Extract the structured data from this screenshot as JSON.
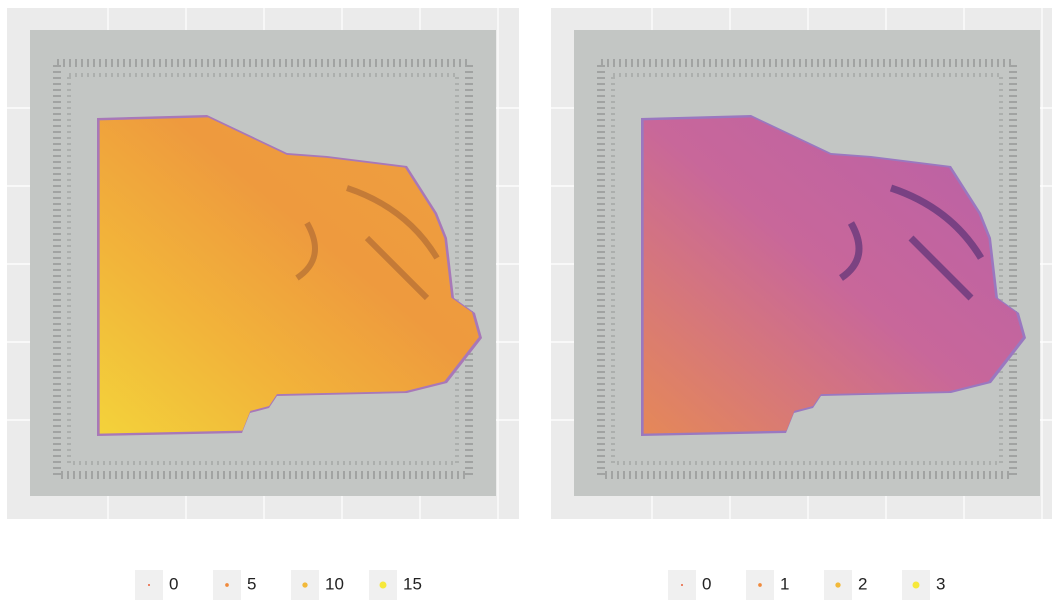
{
  "chart_data": [
    {
      "type": "spatial",
      "legend": {
        "values": [
          0,
          5,
          10,
          15
        ],
        "colors": [
          "#e8603a",
          "#f08a3c",
          "#f2b93a",
          "#f6e83a"
        ]
      }
    },
    {
      "type": "spatial",
      "legend": {
        "values": [
          0,
          1,
          2,
          3
        ],
        "colors": [
          "#e8603a",
          "#f08a3c",
          "#f2b93a",
          "#f6e83a"
        ]
      }
    }
  ]
}
